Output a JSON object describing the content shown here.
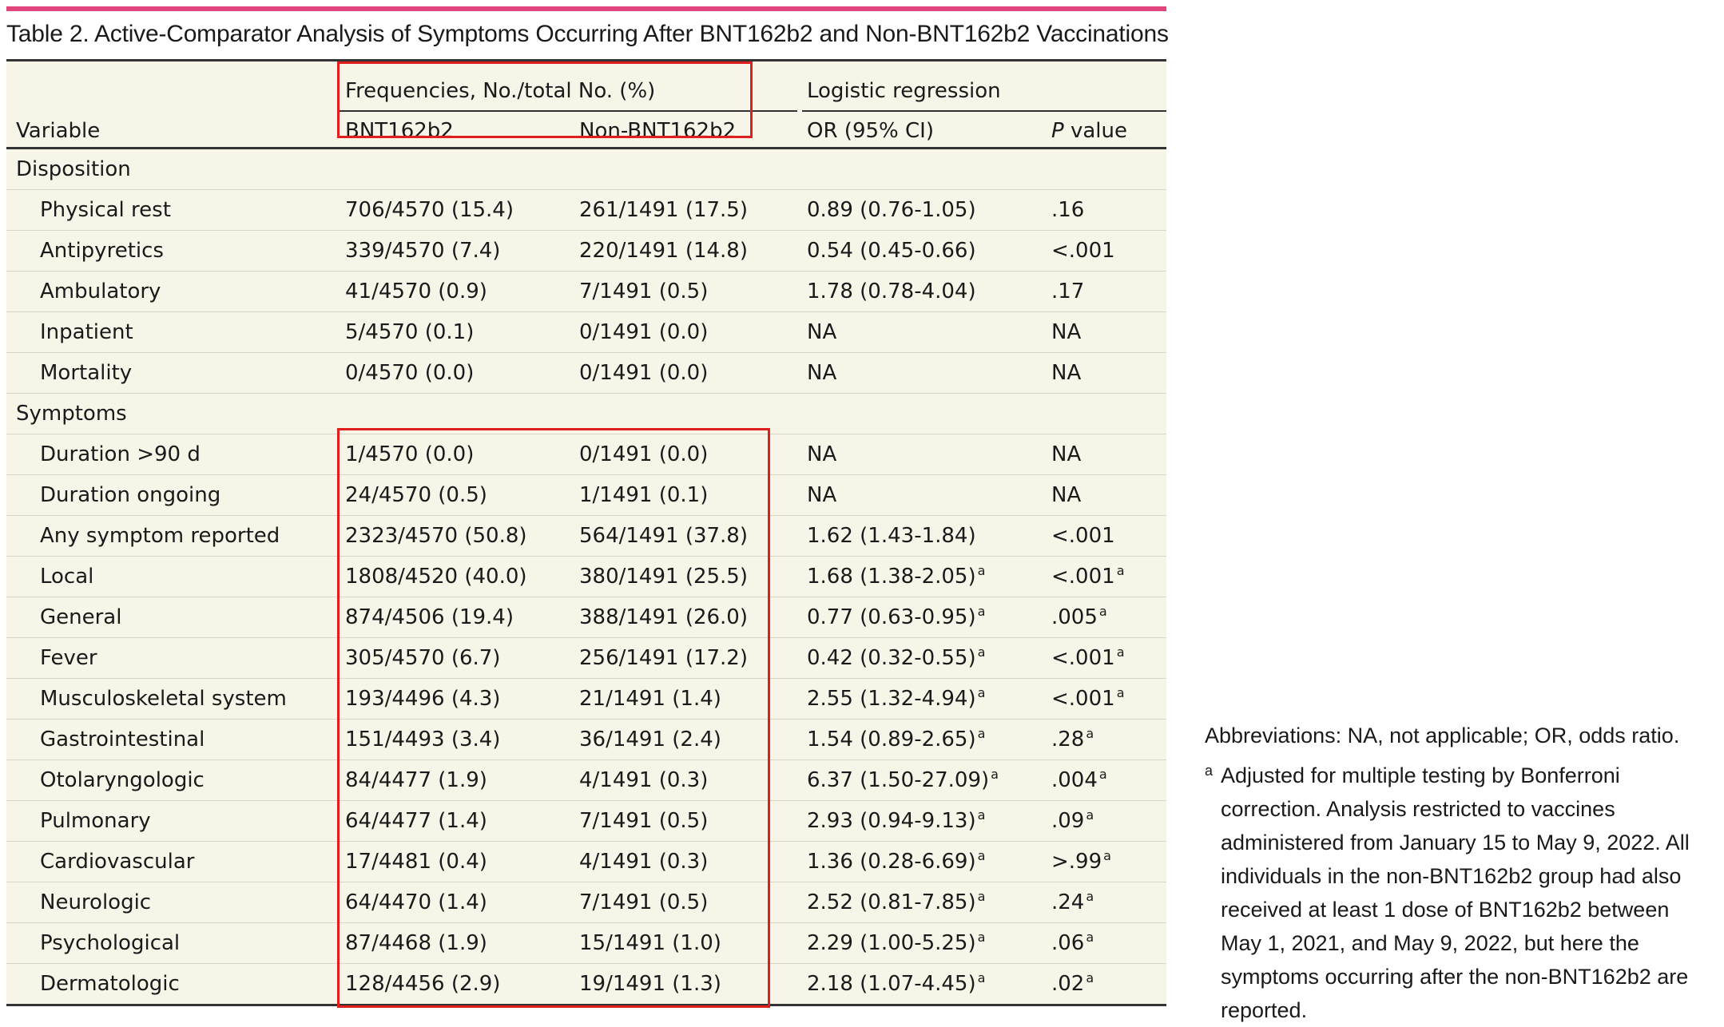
{
  "title": "Table 2. Active-Comparator Analysis of Symptoms Occurring After BNT162b2 and Non-BNT162b2 Vaccinations",
  "colors": {
    "accent_bar": "#e0457b",
    "table_bg": "#f6f5e8",
    "highlight_box": "#e01e1e"
  },
  "header": {
    "group_frequencies": "Frequencies, No./total No. (%)",
    "group_logistic": "Logistic regression",
    "col_variable": "Variable",
    "col_bnt": "BNT162b2",
    "col_nonbnt": "Non-BNT162b2",
    "col_or": "OR (95% CI)",
    "col_p_italic": "P",
    "col_p_rest": " value"
  },
  "sections": [
    {
      "label": "Disposition",
      "rows": [
        {
          "variable": "Physical rest",
          "bnt": "706/4570 (15.4)",
          "nonbnt": "261/1491 (17.5)",
          "or": "0.89 (0.76-1.05)",
          "or_sup": "",
          "p": ".16",
          "p_sup": ""
        },
        {
          "variable": "Antipyretics",
          "bnt": "339/4570 (7.4)",
          "nonbnt": "220/1491 (14.8)",
          "or": "0.54 (0.45-0.66)",
          "or_sup": "",
          "p": "<.001",
          "p_sup": ""
        },
        {
          "variable": "Ambulatory",
          "bnt": "41/4570 (0.9)",
          "nonbnt": "7/1491 (0.5)",
          "or": "1.78 (0.78-4.04)",
          "or_sup": "",
          "p": ".17",
          "p_sup": ""
        },
        {
          "variable": "Inpatient",
          "bnt": "5/4570 (0.1)",
          "nonbnt": "0/1491 (0.0)",
          "or": "NA",
          "or_sup": "",
          "p": "NA",
          "p_sup": ""
        },
        {
          "variable": "Mortality",
          "bnt": "0/4570 (0.0)",
          "nonbnt": "0/1491 (0.0)",
          "or": "NA",
          "or_sup": "",
          "p": "NA",
          "p_sup": ""
        }
      ]
    },
    {
      "label": "Symptoms",
      "rows": [
        {
          "variable": "Duration >90 d",
          "bnt": "1/4570 (0.0)",
          "nonbnt": "0/1491 (0.0)",
          "or": "NA",
          "or_sup": "",
          "p": "NA",
          "p_sup": ""
        },
        {
          "variable": "Duration ongoing",
          "bnt": "24/4570 (0.5)",
          "nonbnt": "1/1491 (0.1)",
          "or": "NA",
          "or_sup": "",
          "p": "NA",
          "p_sup": ""
        },
        {
          "variable": "Any symptom reported",
          "bnt": "2323/4570 (50.8)",
          "nonbnt": "564/1491 (37.8)",
          "or": "1.62 (1.43-1.84)",
          "or_sup": "",
          "p": "<.001",
          "p_sup": ""
        },
        {
          "variable": "Local",
          "bnt": "1808/4520 (40.0)",
          "nonbnt": "380/1491 (25.5)",
          "or": "1.68 (1.38-2.05)",
          "or_sup": "a",
          "p": "<.001",
          "p_sup": "a"
        },
        {
          "variable": "General",
          "bnt": "874/4506 (19.4)",
          "nonbnt": "388/1491 (26.0)",
          "or": "0.77 (0.63-0.95)",
          "or_sup": "a",
          "p": ".005",
          "p_sup": "a"
        },
        {
          "variable": "Fever",
          "bnt": "305/4570 (6.7)",
          "nonbnt": "256/1491 (17.2)",
          "or": "0.42 (0.32-0.55)",
          "or_sup": "a",
          "p": "<.001",
          "p_sup": "a"
        },
        {
          "variable": "Musculoskeletal system",
          "bnt": "193/4496 (4.3)",
          "nonbnt": "21/1491 (1.4)",
          "or": "2.55 (1.32-4.94)",
          "or_sup": "a",
          "p": "<.001",
          "p_sup": "a"
        },
        {
          "variable": "Gastrointestinal",
          "bnt": "151/4493 (3.4)",
          "nonbnt": "36/1491 (2.4)",
          "or": "1.54 (0.89-2.65)",
          "or_sup": "a",
          "p": ".28",
          "p_sup": "a"
        },
        {
          "variable": "Otolaryngologic",
          "bnt": "84/4477 (1.9)",
          "nonbnt": "4/1491 (0.3)",
          "or": "6.37 (1.50-27.09)",
          "or_sup": "a",
          "p": ".004",
          "p_sup": "a"
        },
        {
          "variable": "Pulmonary",
          "bnt": "64/4477 (1.4)",
          "nonbnt": "7/1491 (0.5)",
          "or": "2.93 (0.94-9.13)",
          "or_sup": "a",
          "p": ".09",
          "p_sup": "a"
        },
        {
          "variable": "Cardiovascular",
          "bnt": "17/4481 (0.4)",
          "nonbnt": "4/1491 (0.3)",
          "or": "1.36 (0.28-6.69)",
          "or_sup": "a",
          "p": ">.99",
          "p_sup": "a"
        },
        {
          "variable": "Neurologic",
          "bnt": "64/4470 (1.4)",
          "nonbnt": "7/1491 (0.5)",
          "or": "2.52 (0.81-7.85)",
          "or_sup": "a",
          "p": ".24",
          "p_sup": "a"
        },
        {
          "variable": "Psychological",
          "bnt": "87/4468 (1.9)",
          "nonbnt": "15/1491 (1.0)",
          "or": "2.29 (1.00-5.25)",
          "or_sup": "a",
          "p": ".06",
          "p_sup": "a"
        },
        {
          "variable": "Dermatologic",
          "bnt": "128/4456 (2.9)",
          "nonbnt": "19/1491 (1.3)",
          "or": "2.18 (1.07-4.45)",
          "or_sup": "a",
          "p": ".02",
          "p_sup": "a"
        }
      ]
    }
  ],
  "notes": {
    "abbreviations": "Abbreviations: NA, not applicable; OR, odds ratio.",
    "footnote_mark": "a",
    "footnote_text": "Adjusted for multiple testing by Bonferroni correction. Analysis restricted to vaccines administered from January 15 to May 9, 2022. All individuals in the non-BNT162b2 group had also received at least 1 dose of BNT162b2 between May 1, 2021, and May 9, 2022, but here the symptoms occurring after the non-BNT162b2 are reported."
  }
}
